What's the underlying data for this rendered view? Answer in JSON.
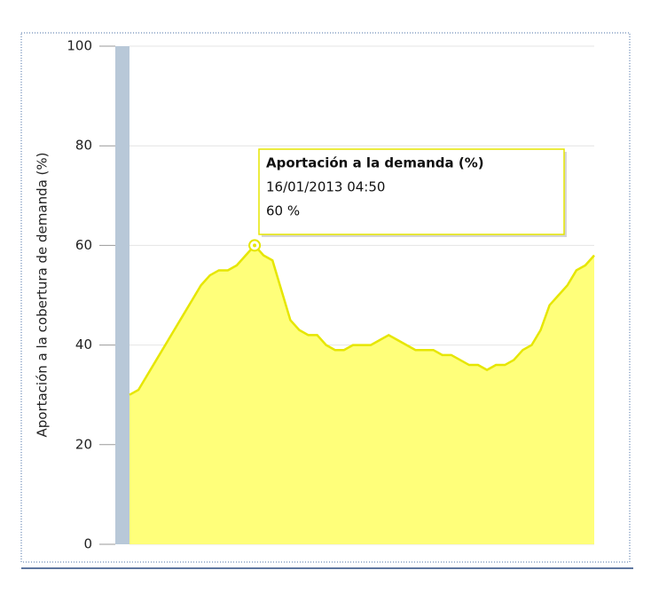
{
  "chart_data": {
    "type": "area",
    "y_label": "Aportación a la cobertura de demanda (%)",
    "values": [
      30,
      31,
      34,
      37,
      40,
      43,
      46,
      49,
      52,
      54,
      55,
      55,
      56,
      58,
      60,
      58,
      57,
      51,
      45,
      43,
      42,
      42,
      40,
      39,
      39,
      40,
      40,
      40,
      41,
      42,
      41,
      40,
      39,
      39,
      39,
      38,
      38,
      37,
      36,
      36,
      35,
      36,
      36,
      37,
      39,
      40,
      43,
      48,
      50,
      52,
      55,
      56,
      58
    ],
    "color": "#ffff7a",
    "line_color": "#e6e600",
    "ylim": [
      0,
      100
    ],
    "yticks": [
      0,
      20,
      40,
      60,
      80,
      100
    ],
    "grid": true,
    "tooltip": {
      "title": "Aportación a la demanda (%)",
      "time": "16/01/2013 04:50",
      "value": "60 %",
      "index": 14
    }
  }
}
